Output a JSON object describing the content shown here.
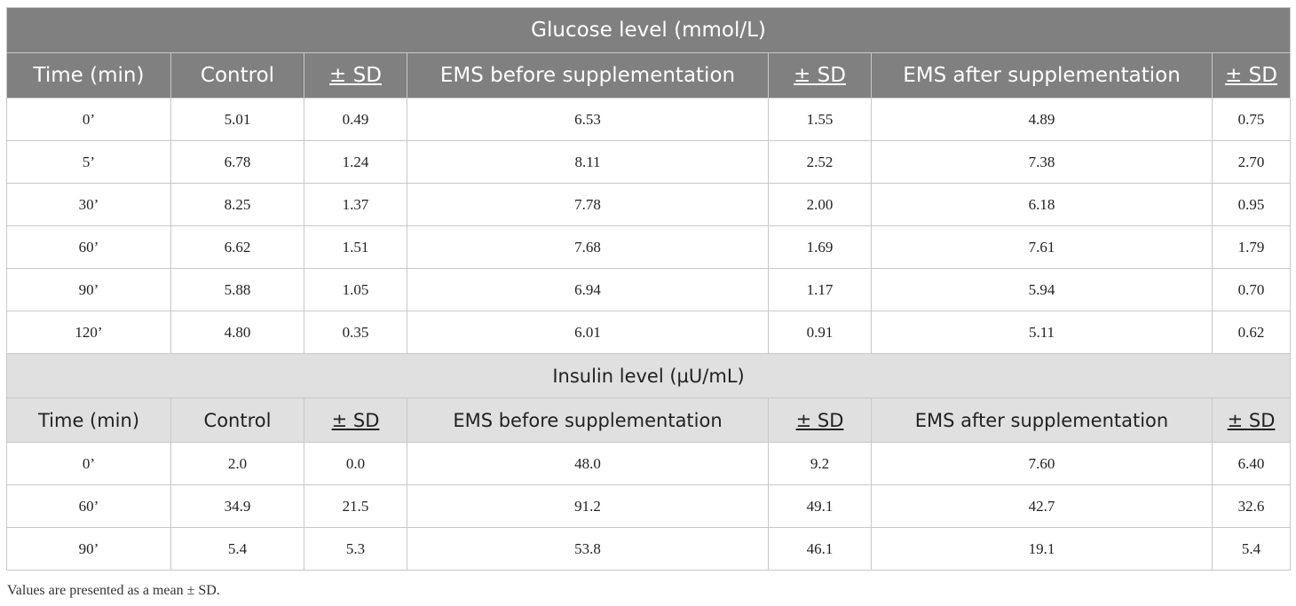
{
  "glucose": {
    "title": "Glucose level (mmol/L)",
    "headers": [
      "Time (min)",
      "Control",
      "± SD",
      "EMS before supplementation",
      "± SD",
      "EMS after supplementation",
      "± SD"
    ],
    "rows": [
      [
        "0’",
        "5.01",
        "0.49",
        "6.53",
        "1.55",
        "4.89",
        "0.75"
      ],
      [
        "5’",
        "6.78",
        "1.24",
        "8.11",
        "2.52",
        "7.38",
        "2.70"
      ],
      [
        "30’",
        "8.25",
        "1.37",
        "7.78",
        "2.00",
        "6.18",
        "0.95"
      ],
      [
        "60’",
        "6.62",
        "1.51",
        "7.68",
        "1.69",
        "7.61",
        "1.79"
      ],
      [
        "90’",
        "5.88",
        "1.05",
        "6.94",
        "1.17",
        "5.94",
        "0.70"
      ],
      [
        "120’",
        "4.80",
        "0.35",
        "6.01",
        "0.91",
        "5.11",
        "0.62"
      ]
    ]
  },
  "insulin": {
    "title": "Insulin level (µU/mL)",
    "headers": [
      "Time (min)",
      "Control",
      "± SD",
      "EMS before supplementation",
      "± SD",
      "EMS after supplementation",
      "± SD"
    ],
    "rows": [
      [
        "0’",
        "2.0",
        "0.0",
        "48.0",
        "9.2",
        "7.60",
        "6.40"
      ],
      [
        "60’",
        "34.9",
        "21.5",
        "91.2",
        "49.1",
        "42.7",
        "32.6"
      ],
      [
        "90’",
        "5.4",
        "5.3",
        "53.8",
        "46.1",
        "19.1",
        "5.4"
      ]
    ]
  },
  "footnote": "Values are presented as a mean ± SD.",
  "colors": {
    "glucose_header_bg": "#808080",
    "insulin_header_bg": "#e0e0e0"
  }
}
